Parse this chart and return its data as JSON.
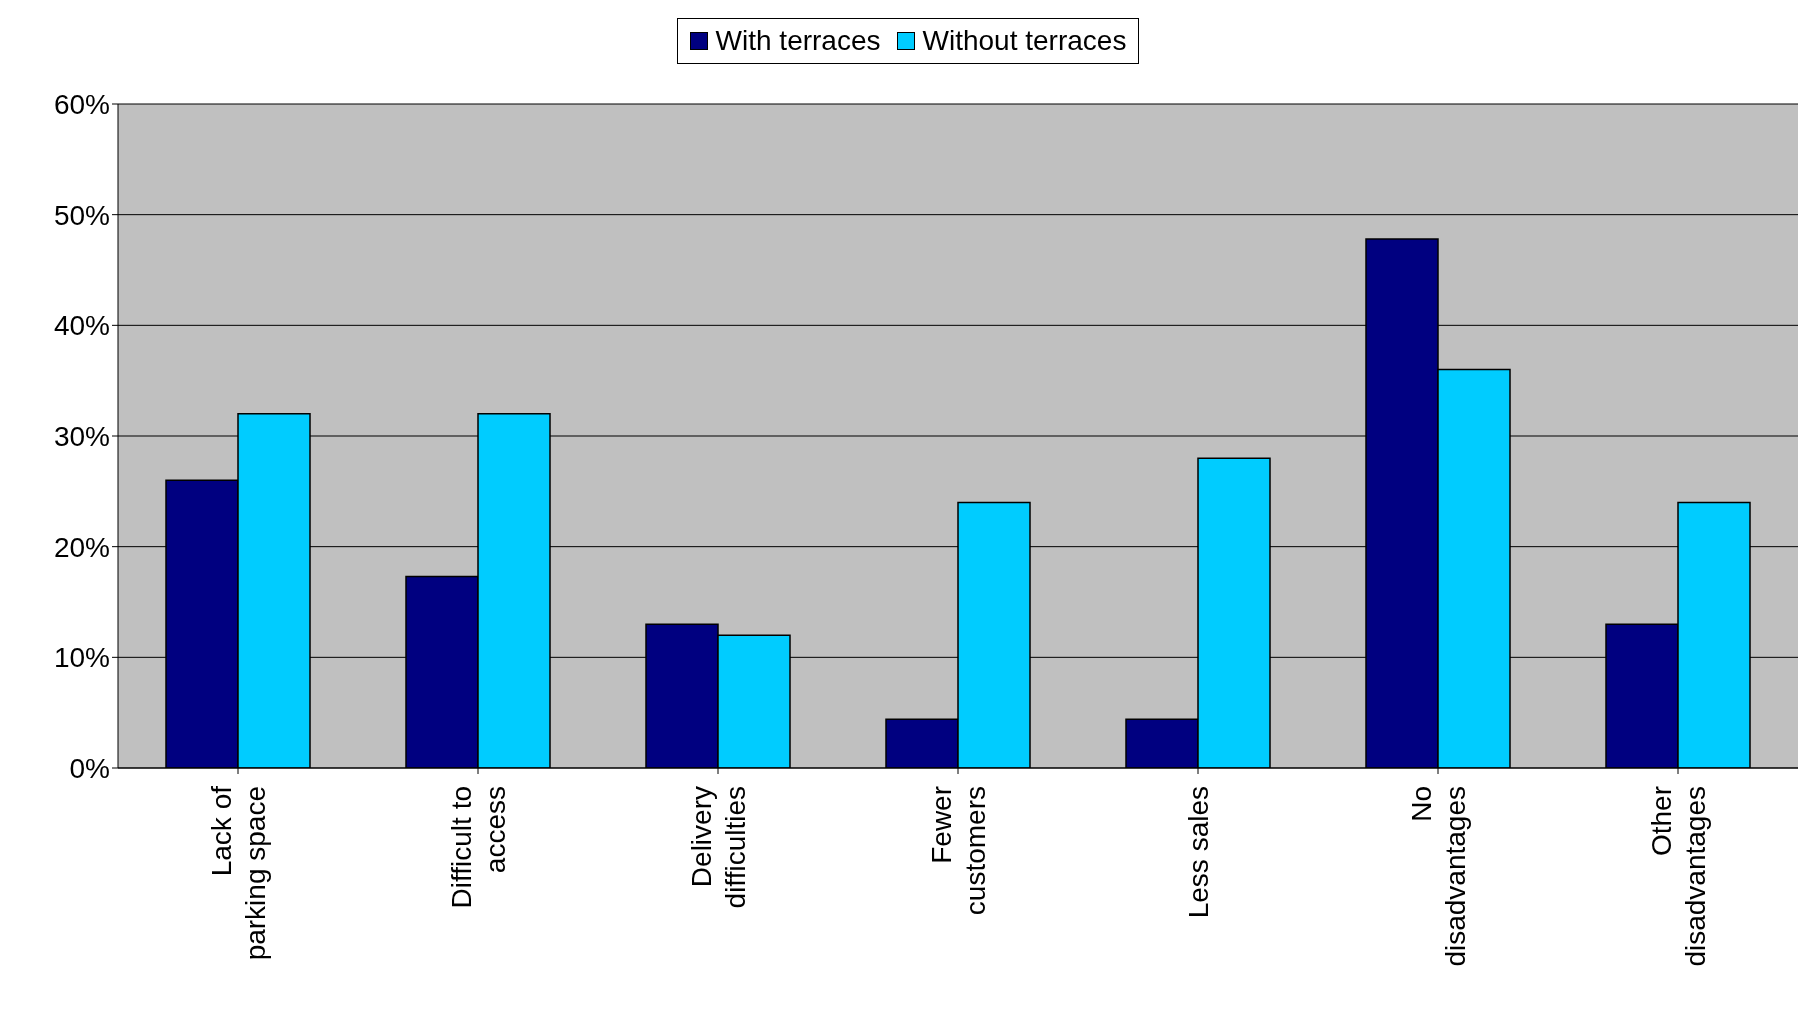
{
  "chart_data": {
    "type": "bar",
    "categories": [
      "Lack of parking space",
      "Difficult to access",
      "Delivery difficulties",
      "Fewer customers",
      "Less sales",
      "No disadvantages",
      "Other disadvantages"
    ],
    "series": [
      {
        "name": "With terraces",
        "color": "#000080",
        "values": [
          26,
          17.3,
          13,
          4.4,
          4.4,
          47.8,
          13
        ]
      },
      {
        "name": "Without terraces",
        "color": "#00ccff",
        "values": [
          32,
          32,
          12,
          24,
          28,
          36,
          24
        ]
      }
    ],
    "ylim": [
      0,
      60
    ],
    "yticks": [
      {
        "value": 0,
        "label": "0%"
      },
      {
        "value": 10,
        "label": "10%"
      },
      {
        "value": 20,
        "label": "20%"
      },
      {
        "value": 30,
        "label": "30%"
      },
      {
        "value": 40,
        "label": "40%"
      },
      {
        "value": 50,
        "label": "50%"
      },
      {
        "value": 60,
        "label": "60%"
      }
    ],
    "grid": "y",
    "legend": "top"
  }
}
